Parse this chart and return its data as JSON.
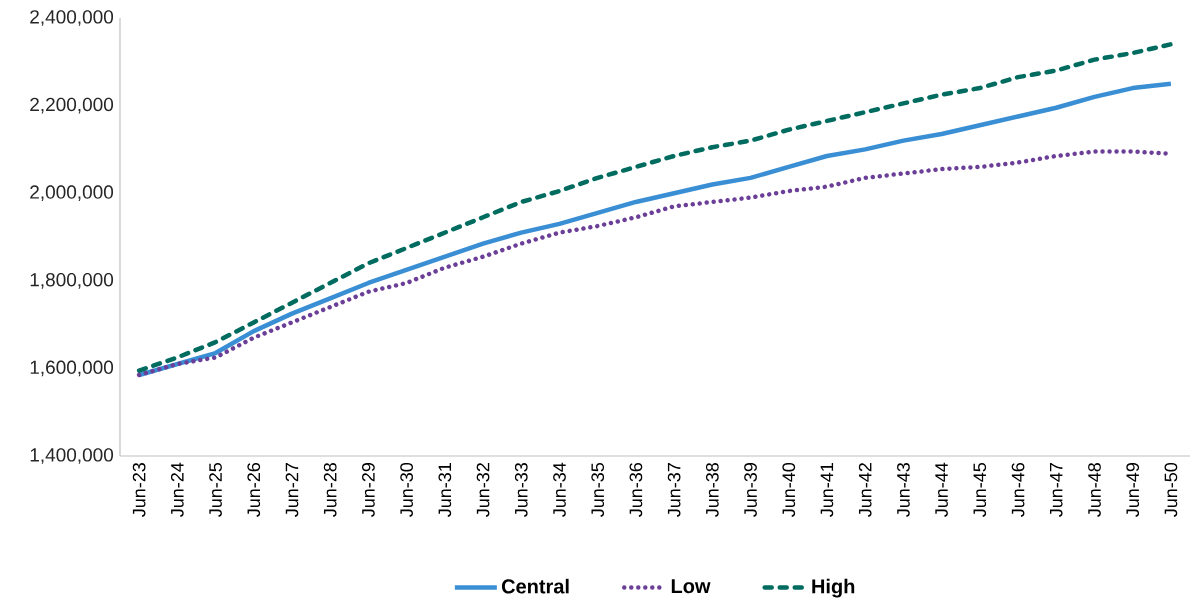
{
  "chart_data": {
    "type": "line",
    "categories": [
      "Jun-23",
      "Jun-24",
      "Jun-25",
      "Jun-26",
      "Jun-27",
      "Jun-28",
      "Jun-29",
      "Jun-30",
      "Jun-31",
      "Jun-32",
      "Jun-33",
      "Jun-34",
      "Jun-35",
      "Jun-36",
      "Jun-37",
      "Jun-38",
      "Jun-39",
      "Jun-40",
      "Jun-41",
      "Jun-42",
      "Jun-43",
      "Jun-44",
      "Jun-45",
      "Jun-46",
      "Jun-47",
      "Jun-48",
      "Jun-49",
      "Jun-50"
    ],
    "series": [
      {
        "name": "Central",
        "color": "#3a8fd4",
        "line_style": "solid",
        "values": [
          1585000,
          1610000,
          1635000,
          1685000,
          1725000,
          1760000,
          1795000,
          1825000,
          1855000,
          1885000,
          1910000,
          1930000,
          1955000,
          1980000,
          2000000,
          2020000,
          2035000,
          2060000,
          2085000,
          2100000,
          2120000,
          2135000,
          2155000,
          2175000,
          2195000,
          2220000,
          2240000,
          2250000
        ]
      },
      {
        "name": "Low",
        "color": "#6b3f98",
        "line_style": "dotted",
        "values": [
          1585000,
          1610000,
          1625000,
          1670000,
          1705000,
          1740000,
          1775000,
          1795000,
          1830000,
          1855000,
          1885000,
          1910000,
          1925000,
          1945000,
          1970000,
          1980000,
          1990000,
          2005000,
          2015000,
          2035000,
          2045000,
          2055000,
          2060000,
          2070000,
          2085000,
          2095000,
          2095000,
          2090000
        ]
      },
      {
        "name": "High",
        "color": "#006b5f",
        "line_style": "dashed",
        "values": [
          1595000,
          1625000,
          1660000,
          1705000,
          1750000,
          1795000,
          1840000,
          1875000,
          1910000,
          1945000,
          1980000,
          2005000,
          2035000,
          2060000,
          2085000,
          2105000,
          2120000,
          2145000,
          2165000,
          2185000,
          2205000,
          2225000,
          2240000,
          2265000,
          2280000,
          2305000,
          2320000,
          2340000
        ]
      }
    ],
    "ylim": [
      1400000,
      2400000
    ],
    "yticks": [
      {
        "value": 1400000,
        "label": "1,400,000"
      },
      {
        "value": 1600000,
        "label": "1,600,000"
      },
      {
        "value": 1800000,
        "label": "1,800,000"
      },
      {
        "value": 2000000,
        "label": "2,000,000"
      },
      {
        "value": 2200000,
        "label": "2,200,000"
      },
      {
        "value": 2400000,
        "label": "2,400,000"
      }
    ],
    "grid": false,
    "legend": "bottom"
  }
}
